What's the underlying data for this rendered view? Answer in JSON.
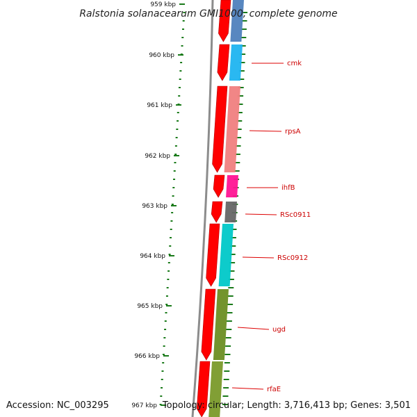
{
  "title": "Ralstonia solanacearum GMI1000, complete genome",
  "accession": "Accession: NC_003295",
  "summary": "Topology: circular; Length: 3,716,413 bp; Genes: 3,501",
  "colors": {
    "backbone": "#8c8c8c",
    "tick": "#1a7a1a",
    "label_line": "#dd0000",
    "label_text": "#cc0000",
    "cds": "#ff0000"
  },
  "scale": {
    "unit": "kbp",
    "ticks": [
      "959 kbp",
      "960 kbp",
      "961 kbp",
      "962 kbp",
      "963 kbp",
      "964 kbp",
      "965 kbp",
      "966 kbp",
      "967 kbp"
    ]
  },
  "genes": [
    {
      "name": "",
      "color": "#4f81bd"
    },
    {
      "name": "cmk",
      "color": "#1fb4f0"
    },
    {
      "name": "rpsA",
      "color": "#f08080"
    },
    {
      "name": "ihfB",
      "color": "#ff1493"
    },
    {
      "name": "RSc0911",
      "color": "#666666"
    },
    {
      "name": "RSc0912",
      "color": "#00c8c8"
    },
    {
      "name": "ugd",
      "color": "#6b8e23"
    },
    {
      "name": "rfaE",
      "color": "#7a9a2a"
    }
  ]
}
